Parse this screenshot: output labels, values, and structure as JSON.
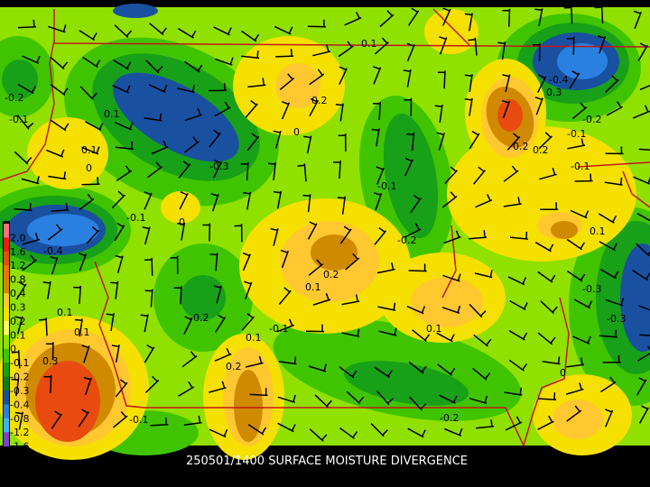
{
  "title": "250501/1400 SURFACE MOISTURE DIVERGENCE",
  "legend": {
    "labels": [
      "2.0",
      "1.6",
      "1.2",
      "0.8",
      "0.4",
      "0.3",
      "0.2",
      "0.1",
      "0",
      "-0.1",
      "-0.2",
      "-0.3",
      "-0.4",
      "-0.8",
      "-1.2",
      "-1.6"
    ],
    "colors": [
      "#ff6f7f",
      "#f01818",
      "#e84a10",
      "#f07010",
      "#d08a00",
      "#ffc830",
      "#f5e000",
      "#ffff60",
      "#90e000",
      "#40c400",
      "#18a018",
      "#107a20",
      "#1a50a0",
      "#2a80e0",
      "#40b0ff",
      "#8040d0"
    ]
  },
  "contour_labels": [
    "0.1",
    "-0.2",
    "-0.1",
    "0.1",
    "0",
    "-0.3",
    "0.1",
    "0.2",
    "0",
    "-0.1",
    "-0.4",
    "-0.4",
    "0.3",
    "0.2",
    "-0.1",
    "0.2",
    "-0.2",
    "-0.1",
    "0",
    "-0.1",
    "0.1",
    "-0.2",
    "0.2",
    "0.1",
    "-0.2",
    "0.1",
    "0.1",
    "-0.1",
    "-0.3",
    "0.3",
    "0.2",
    "0.1",
    "-0.2",
    "-0.1",
    "0.1",
    "0",
    "-0.3"
  ]
}
